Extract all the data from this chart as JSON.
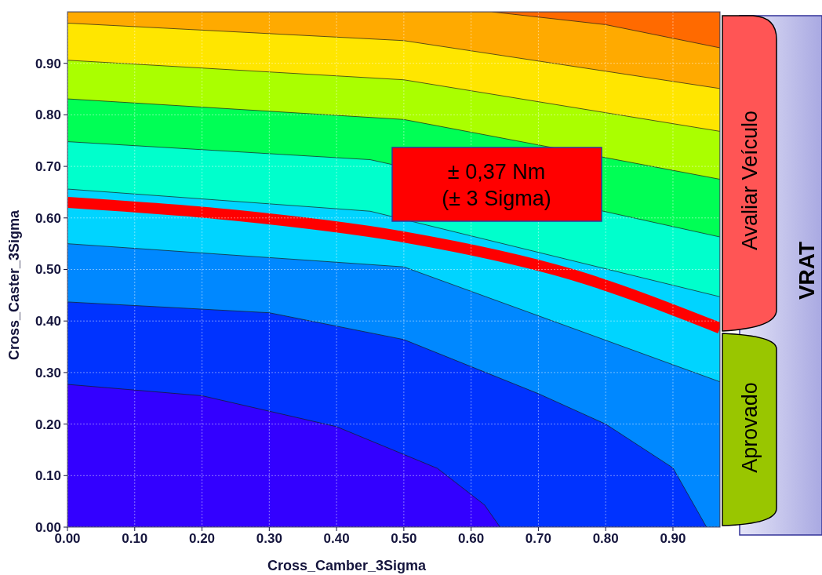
{
  "chart_data": {
    "type": "area",
    "xlabel": "Cross_Camber_3Sigma",
    "ylabel": "Cross_Caster_3Sigma",
    "xlim": [
      0,
      0.97
    ],
    "ylim": [
      0,
      1
    ],
    "xticks": [
      {
        "value": 0,
        "label": "0.00"
      },
      {
        "value": 0.1,
        "label": "0.10"
      },
      {
        "value": 0.2,
        "label": "0.20"
      },
      {
        "value": 0.3,
        "label": "0.30"
      },
      {
        "value": 0.4,
        "label": "0.40"
      },
      {
        "value": 0.5,
        "label": "0.50"
      },
      {
        "value": 0.6,
        "label": "0.60"
      },
      {
        "value": 0.7,
        "label": "0.70"
      },
      {
        "value": 0.8,
        "label": "0.80"
      },
      {
        "value": 0.9,
        "label": "0.90"
      }
    ],
    "yticks": [
      {
        "value": 0,
        "label": "0.00"
      },
      {
        "value": 0.1,
        "label": "0.10"
      },
      {
        "value": 0.2,
        "label": "0.20"
      },
      {
        "value": 0.3,
        "label": "0.30"
      },
      {
        "value": 0.4,
        "label": "0.40"
      },
      {
        "value": 0.5,
        "label": "0.50"
      },
      {
        "value": 0.6,
        "label": "0.60"
      },
      {
        "value": 0.7,
        "label": "0.70"
      },
      {
        "value": 0.8,
        "label": "0.80"
      },
      {
        "value": 0.9,
        "label": "0.90"
      }
    ],
    "grid": true,
    "series": [
      {
        "color": "#ff6a00",
        "x": [
          0.63,
          0.97
        ],
        "values": [
          1,
          1
        ]
      },
      {
        "color": "#ffaa00",
        "x": [
          0,
          0.63,
          0.8,
          0.97
        ],
        "values": [
          1,
          1,
          0.975,
          0.93
        ]
      },
      {
        "color": "#ffe600",
        "x": [
          0,
          0.5,
          0.97
        ],
        "values": [
          0.978,
          0.944,
          0.851
        ]
      },
      {
        "color": "#aaff00",
        "x": [
          0,
          0.5,
          0.97
        ],
        "values": [
          0.906,
          0.868,
          0.768
        ]
      },
      {
        "color": "#00ff55",
        "x": [
          0,
          0.5,
          0.97
        ],
        "values": [
          0.831,
          0.791,
          0.675
        ]
      },
      {
        "color": "#00ffcc",
        "x": [
          0,
          0.45,
          0.97
        ],
        "values": [
          0.748,
          0.713,
          0.563
        ]
      },
      {
        "color": "#00d4ff",
        "x": [
          0,
          0.45,
          0.97
        ],
        "values": [
          0.656,
          0.613,
          0.447
        ]
      },
      {
        "color": "#0088ff",
        "x": [
          0,
          0.5,
          0.97
        ],
        "values": [
          0.55,
          0.505,
          0.282
        ]
      },
      {
        "color": "#0033ff",
        "x": [
          0,
          0.3,
          0.5,
          0.7,
          0.8,
          0.9,
          0.95
        ],
        "values": [
          0.437,
          0.416,
          0.364,
          0.259,
          0.2,
          0.115,
          0
        ]
      },
      {
        "color": "#3300ff",
        "x": [
          0,
          0.2,
          0.4,
          0.55,
          0.62,
          0.643
        ],
        "values": [
          0.277,
          0.255,
          0.195,
          0.114,
          0.043,
          0
        ]
      },
      {
        "type": "line",
        "color": "#ff0000",
        "x": [
          0,
          0.25,
          0.5,
          0.75,
          0.97
        ],
        "values": [
          0.63,
          0.605,
          0.563,
          0.49,
          0.386
        ]
      }
    ],
    "annotations": [
      "± 0,37 Nm\n(± 3 Sigma)",
      "Avaliar Veículo",
      "Aprovado",
      "VRAT"
    ]
  }
}
